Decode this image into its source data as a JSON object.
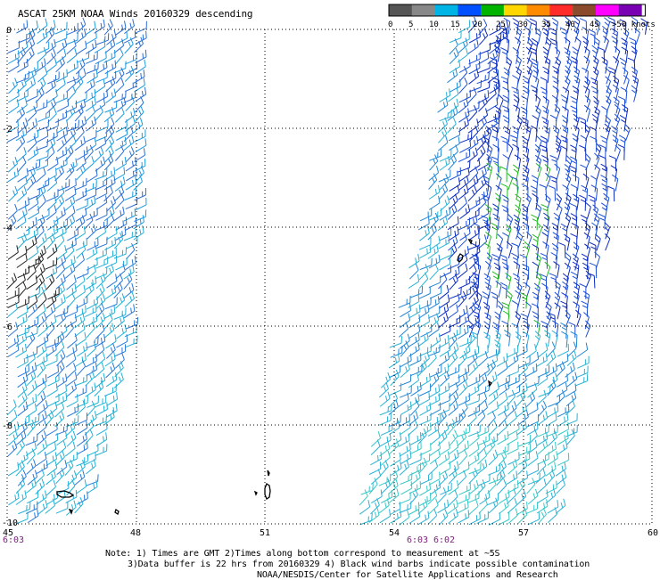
{
  "title": "ASCAT 25KM NOAA Winds 20160329 descending",
  "speed_scale": {
    "labels": [
      "0",
      "5",
      "10",
      "15",
      "20",
      "25",
      "30",
      "35",
      "40",
      "45",
      ">50 knots"
    ],
    "colors": [
      "#555555",
      "#888888",
      "#00b4e6",
      "#0050ff",
      "#00b400",
      "#ffd700",
      "#ff8c00",
      "#ff2a2a",
      "#8b4a2b",
      "#ff00ff",
      "#7a00b4"
    ]
  },
  "axes": {
    "lon_ticks": [
      "45",
      "48",
      "51",
      "54",
      "57",
      "60"
    ],
    "lat_ticks": [
      "0",
      "-2",
      "-4",
      "-6",
      "-8",
      "-10"
    ]
  },
  "times": {
    "left_swath": "6:03",
    "right_swath_a": "6:03",
    "right_swath_b": "6:02"
  },
  "notes": {
    "line1": "Note: 1) Times are GMT 2)Times along bottom correspond to measurement at ~5S",
    "line2": "3)Data buffer is 22 hrs from 20160329 4) Black wind barbs indicate possible contamination",
    "line3": "NOAA/NESDIS/Center for Satellite Applications and Research"
  }
}
